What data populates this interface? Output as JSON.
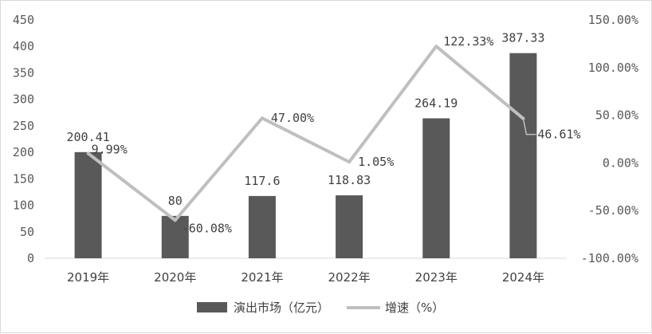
{
  "chart_data": {
    "type": "bar",
    "categories": [
      "2019年",
      "2020年",
      "2021年",
      "2022年",
      "2023年",
      "2024年"
    ],
    "series": [
      {
        "name": "演出市场（亿元）",
        "type": "bar",
        "axis": "left",
        "values": [
          200.41,
          80,
          117.6,
          118.83,
          264.19,
          387.33
        ],
        "labels": [
          "200.41",
          "80",
          "117.6",
          "118.83",
          "264.19",
          "387.33"
        ],
        "color": "#595959"
      },
      {
        "name": "增速（%）",
        "type": "line",
        "axis": "right",
        "values": [
          9.99,
          -60.08,
          47.0,
          1.05,
          122.33,
          46.61
        ],
        "labels": [
          "9.99%",
          "-60.08%",
          "47.00%",
          "1.05%",
          "122.33%",
          "46.61%"
        ],
        "color": "#bfbfbf"
      }
    ],
    "y_left": {
      "lim": [
        0,
        450
      ],
      "ticks": [
        0,
        50,
        100,
        150,
        200,
        250,
        300,
        350,
        400,
        450
      ],
      "tick_labels": [
        "0",
        "50",
        "100",
        "150",
        "200",
        "250",
        "300",
        "350",
        "400",
        "450"
      ]
    },
    "y_right": {
      "lim": [
        -100,
        150
      ],
      "ticks": [
        -100,
        -50,
        0,
        50,
        100,
        150
      ],
      "tick_labels": [
        "-100.00%",
        "-50.00%",
        "0.00%",
        "50.00%",
        "100.00%",
        "150.00%"
      ]
    },
    "grid": false,
    "legend": "bottom",
    "legend_items": [
      {
        "label": "演出市场（亿元）",
        "color": "#595959"
      },
      {
        "label": "增速（%）",
        "color": "#bfbfbf"
      }
    ]
  }
}
